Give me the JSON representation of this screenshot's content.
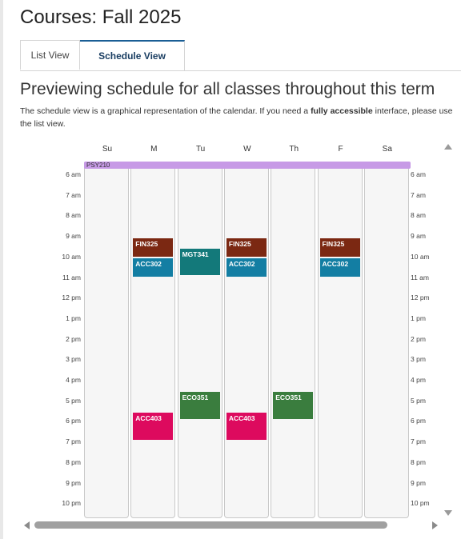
{
  "page": {
    "title": "Courses: Fall 2025",
    "tabs": [
      {
        "label": "List View",
        "active": false
      },
      {
        "label": "Schedule View",
        "active": true
      }
    ],
    "preview_heading": "Previewing schedule for all classes throughout this term",
    "description_pre": "The schedule view is a graphical representation of the calendar. If you need a ",
    "description_bold": "fully accessible",
    "description_post": " interface, please use the list view."
  },
  "schedule": {
    "days": [
      "Su",
      "M",
      "Tu",
      "W",
      "Th",
      "F",
      "Sa"
    ],
    "times": [
      "6 am",
      "7 am",
      "8 am",
      "9 am",
      "10 am",
      "11 am",
      "12 pm",
      "1 pm",
      "2 pm",
      "3 pm",
      "4 pm",
      "5 pm",
      "6 pm",
      "7 pm",
      "8 pm",
      "9 pm",
      "10 pm"
    ],
    "all_day": {
      "label": "PSY210",
      "color": "#c79ae6"
    },
    "events": [
      {
        "course": "FIN325",
        "day": 1,
        "start_hour": 9.1,
        "end_hour": 10.0,
        "color": "#7b2812"
      },
      {
        "course": "FIN325",
        "day": 3,
        "start_hour": 9.1,
        "end_hour": 10.0,
        "color": "#7b2812"
      },
      {
        "course": "FIN325",
        "day": 5,
        "start_hour": 9.1,
        "end_hour": 10.0,
        "color": "#7b2812"
      },
      {
        "course": "ACC302",
        "day": 1,
        "start_hour": 10.1,
        "end_hour": 11.0,
        "color": "#137ea3"
      },
      {
        "course": "ACC302",
        "day": 3,
        "start_hour": 10.1,
        "end_hour": 11.0,
        "color": "#137ea3"
      },
      {
        "course": "ACC302",
        "day": 5,
        "start_hour": 10.1,
        "end_hour": 11.0,
        "color": "#137ea3"
      },
      {
        "course": "MGT341",
        "day": 2,
        "start_hour": 9.6,
        "end_hour": 10.9,
        "color": "#13797a"
      },
      {
        "course": "ECO351",
        "day": 2,
        "start_hour": 16.6,
        "end_hour": 17.9,
        "color": "#3a7d3e"
      },
      {
        "course": "ECO351",
        "day": 4,
        "start_hour": 16.6,
        "end_hour": 17.9,
        "color": "#3a7d3e"
      },
      {
        "course": "ACC403",
        "day": 1,
        "start_hour": 17.6,
        "end_hour": 18.9,
        "color": "#dd0a5e"
      },
      {
        "course": "ACC403",
        "day": 3,
        "start_hour": 17.6,
        "end_hour": 18.9,
        "color": "#dd0a5e"
      }
    ]
  },
  "colors": {
    "active_tab_accent": "#1a5e95",
    "column_bg": "#f6f6f6"
  },
  "icons": {
    "scroll_up": "triangle-up-icon",
    "scroll_down": "triangle-down-icon",
    "scroll_left": "triangle-left-icon",
    "scroll_right": "triangle-right-icon"
  }
}
